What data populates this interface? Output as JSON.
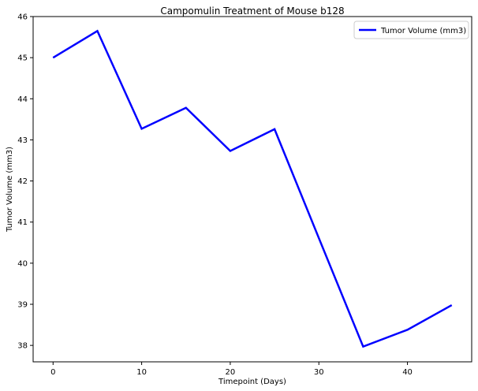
{
  "chart_data": {
    "type": "line",
    "title": "Campomulin Treatment of Mouse b128",
    "xlabel": "Timepoint (Days)",
    "ylabel": "Tumor Volume (mm3)",
    "x": [
      0,
      5,
      10,
      15,
      20,
      25,
      30,
      35,
      40,
      45
    ],
    "series": [
      {
        "name": "Tumor Volume (mm3)",
        "color": "#0000ff",
        "values": [
          45.0,
          45.65,
          43.27,
          43.78,
          42.73,
          43.26,
          40.61,
          37.97,
          38.38,
          38.98
        ]
      }
    ],
    "xlim": [
      -2.25,
      47.25
    ],
    "ylim": [
      37.6,
      46.0
    ],
    "xticks": [
      0,
      10,
      20,
      30,
      40
    ],
    "yticks": [
      38,
      39,
      40,
      41,
      42,
      43,
      44,
      45,
      46
    ],
    "grid": false,
    "legend_position": "top-right"
  }
}
